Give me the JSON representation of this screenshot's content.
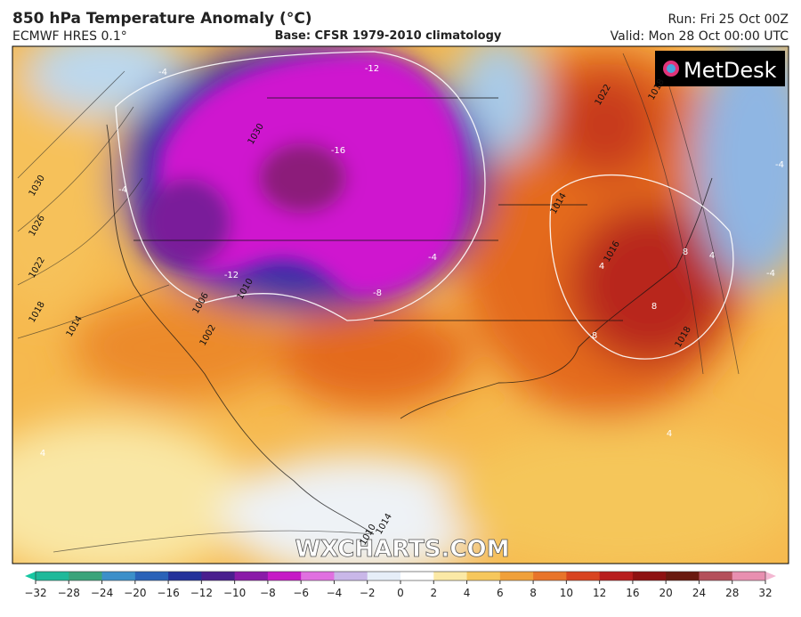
{
  "header": {
    "title": "850 hPa Temperature Anomaly (°C)",
    "model": "ECMWF HRES 0.1°",
    "base": "Base: CFSR 1979-2010 climatology",
    "run": "Run: Fri 25 Oct 00Z",
    "valid": "Valid: Mon 28 Oct 00:00 UTC"
  },
  "logo": "MetDesk",
  "watermark": "WXCHARTS.COM",
  "contour_labels": [
    "-12",
    "-16",
    "1030",
    "-4",
    "-4",
    "-12",
    "-8",
    "-4",
    "1030",
    "1026",
    "1022",
    "1018",
    "1014",
    "1006",
    "1002",
    "1010",
    "1022",
    "1018",
    "1014",
    "1016",
    "4",
    "4",
    "8",
    "8",
    "8",
    "-4",
    "-4",
    "4",
    "1014",
    "1010",
    "1018",
    "4"
  ],
  "colorbar": {
    "ticks": [
      "−32",
      "−28",
      "−24",
      "−20",
      "−16",
      "−12",
      "−10",
      "−8",
      "−6",
      "−4",
      "−2",
      "0",
      "2",
      "4",
      "6",
      "8",
      "10",
      "12",
      "16",
      "20",
      "24",
      "28",
      "32"
    ]
  }
}
